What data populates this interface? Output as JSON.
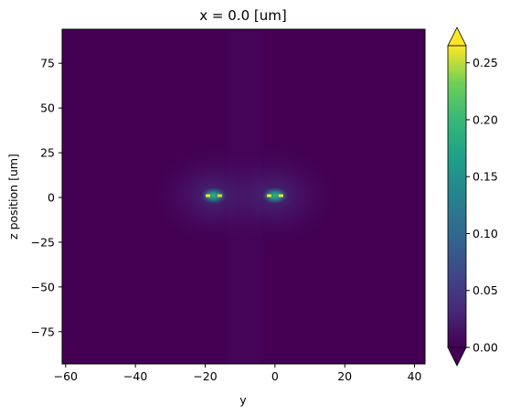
{
  "chart_data": {
    "type": "heatmap",
    "title": "x = 0.0 [um]",
    "xlabel": "y",
    "ylabel": "z position [um]",
    "xlim": [
      -61,
      43
    ],
    "ylim": [
      -93,
      94
    ],
    "x_ticks": [
      -60,
      -40,
      -20,
      0,
      20,
      40
    ],
    "x_tick_labels": [
      "−60",
      "−40",
      "−20",
      "0",
      "20",
      "40"
    ],
    "y_ticks": [
      75,
      50,
      25,
      0,
      -25,
      -50,
      -75
    ],
    "y_tick_labels": [
      "75",
      "50",
      "25",
      "0",
      "−25",
      "−50",
      "−75"
    ],
    "colorbar": {
      "colormap": "viridis",
      "range": [
        0,
        0.265
      ],
      "extend": "both",
      "ticks": [
        0,
        0.05,
        0.1,
        0.15,
        0.2,
        0.25
      ],
      "tick_labels": [
        "0.00",
        "0.05",
        "0.10",
        "0.15",
        "0.20",
        "0.25"
      ]
    },
    "hotspots": [
      {
        "y": -17.5,
        "z": 1,
        "peak_value": 0.265
      },
      {
        "y": 0,
        "z": 1,
        "peak_value": 0.265
      }
    ],
    "background_value": 0.0,
    "grid": false
  },
  "colors": {
    "background": "#440154",
    "low": "#440154",
    "high": "#fde725"
  }
}
